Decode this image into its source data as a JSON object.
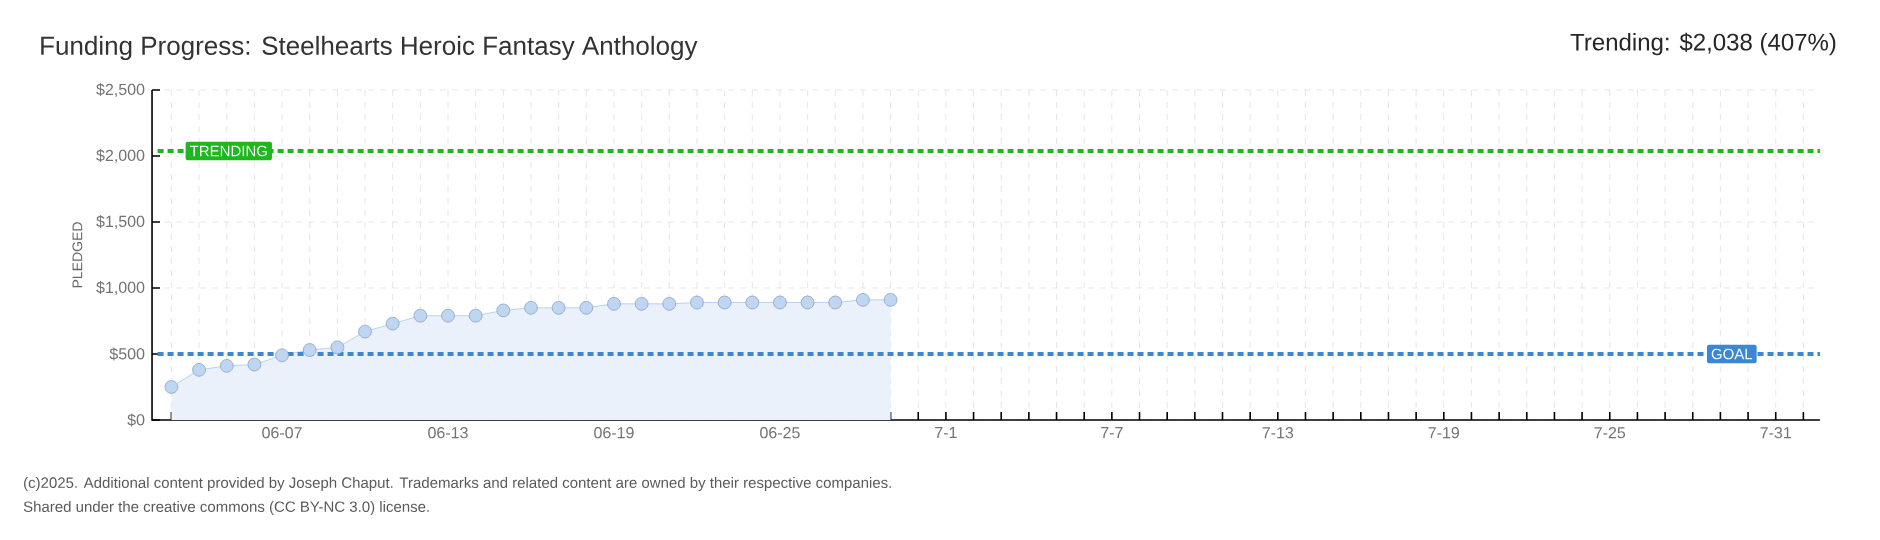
{
  "chart_data": {
    "type": "area",
    "title": "Funding Progress: Steelhearts Heroic Fantasy Anthology",
    "subtitle": "Trending: $2,038 (407%)",
    "ylabel": "PLEDGED",
    "categories": [
      null,
      null,
      null,
      null,
      "06-07",
      null,
      null,
      null,
      null,
      null,
      "06-13",
      null,
      null,
      null,
      null,
      null,
      "06-19",
      null,
      null,
      null,
      null,
      null,
      "06-25",
      null,
      null,
      null,
      null,
      null,
      "7-1",
      null,
      null,
      null,
      null,
      null,
      "7-7",
      null,
      null,
      null,
      null,
      null,
      "7-13",
      null,
      null,
      null,
      null,
      null,
      "7-19",
      null,
      null,
      null,
      null,
      null,
      "7-25",
      null,
      null,
      null,
      null,
      null,
      "7-31",
      null
    ],
    "series": [
      {
        "color": "#a9c8ee",
        "values": [
          250,
          380,
          410,
          420,
          490,
          530,
          550,
          670,
          730,
          790,
          790,
          790,
          830,
          850,
          850,
          850,
          880,
          880,
          880,
          890,
          890,
          890,
          890,
          890,
          890,
          910,
          910,
          null,
          null,
          null,
          null,
          null,
          null,
          null,
          null,
          null,
          null,
          null,
          null,
          null,
          null,
          null,
          null,
          null,
          null,
          null,
          null,
          null,
          null,
          null,
          null,
          null,
          null,
          null,
          null,
          null,
          null,
          null,
          null,
          null
        ]
      }
    ],
    "ylim": [
      0,
      2500
    ],
    "yticks": [
      {
        "value": 0,
        "label": "$0"
      },
      {
        "value": 500,
        "label": "$500"
      },
      {
        "value": 1000,
        "label": "$1,000"
      },
      {
        "value": 1500,
        "label": "$1,500"
      },
      {
        "value": 2000,
        "label": "$2,000"
      },
      {
        "value": 2500,
        "label": "$2,500"
      }
    ],
    "grid": true,
    "marker": "circle",
    "ref_lines": [
      {
        "axis": "y",
        "value": 2038,
        "label": "TRENDING",
        "color": "#1db81d",
        "line_style": "dashed"
      },
      {
        "axis": "y",
        "value": 500,
        "label": "GOAL",
        "color": "#3a87d6",
        "line_style": "dashed"
      }
    ],
    "annotations": [
      "(c)2025. Additional content provided by Joseph Chaput. Trademarks and related content are owned by their respective companies.",
      "Shared under the creative commons (CC BY-NC 3.0) license."
    ]
  }
}
